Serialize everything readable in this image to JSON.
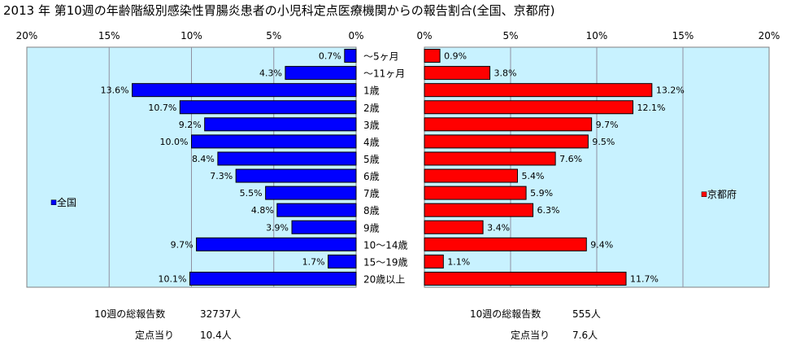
{
  "title": "2013 年 第10週の年齢階級別感染性胃腸炎患者の小児科定点医療機関からの報告割合(全国、京都府)",
  "colors": {
    "national_bar": "#0000ff",
    "kyoto_bar": "#ff0000",
    "plot_bg_left": "#c8f2ff",
    "plot_bg_right": "#c8f2ff",
    "gridline": "#9090a0"
  },
  "chart_data": [
    {
      "type": "bar",
      "orientation": "horizontal",
      "direction": "right-to-left",
      "legend": "全国",
      "legend_position": "left",
      "categories": [
        "～5ヶ月",
        "～11ヶ月",
        "1歳",
        "2歳",
        "3歳",
        "4歳",
        "5歳",
        "6歳",
        "7歳",
        "8歳",
        "9歳",
        "10～14歳",
        "15～19歳",
        "20歳以上"
      ],
      "values": [
        0.7,
        4.3,
        13.6,
        10.7,
        9.2,
        10.0,
        8.4,
        7.3,
        5.5,
        4.8,
        3.9,
        9.7,
        1.7,
        10.1
      ],
      "value_labels": [
        "0.7%",
        "4.3%",
        "13.6%",
        "10.7%",
        "9.2%",
        "10.0%",
        "8.4%",
        "7.3%",
        "5.5%",
        "4.8%",
        "3.9%",
        "9.7%",
        "1.7%",
        "10.1%"
      ],
      "xlim": [
        0,
        20
      ],
      "ticks": [
        "20%",
        "15%",
        "10%",
        "5%",
        "0%"
      ],
      "grid": true
    },
    {
      "type": "bar",
      "orientation": "horizontal",
      "direction": "left-to-right",
      "legend": "京都府",
      "legend_position": "right",
      "categories": [
        "～5ヶ月",
        "～11ヶ月",
        "1歳",
        "2歳",
        "3歳",
        "4歳",
        "5歳",
        "6歳",
        "7歳",
        "8歳",
        "9歳",
        "10～14歳",
        "15～19歳",
        "20歳以上"
      ],
      "values": [
        0.9,
        3.8,
        13.2,
        12.1,
        9.7,
        9.5,
        7.6,
        5.4,
        5.9,
        6.3,
        3.4,
        9.4,
        1.1,
        11.7
      ],
      "value_labels": [
        "0.9%",
        "3.8%",
        "13.2%",
        "12.1%",
        "9.7%",
        "9.5%",
        "7.6%",
        "5.4%",
        "5.9%",
        "6.3%",
        "3.4%",
        "9.4%",
        "1.1%",
        "11.7%"
      ],
      "xlim": [
        0,
        20
      ],
      "ticks": [
        "0%",
        "5%",
        "10%",
        "15%",
        "20%"
      ],
      "grid": true
    }
  ],
  "stats": {
    "national": {
      "total_label": "10週の総報告数",
      "total_value": "32737人",
      "per_point_label": "定点当り",
      "per_point_value": "10.4人"
    },
    "kyoto": {
      "total_label": "10週の総報告数",
      "total_value": "555人",
      "per_point_label": "定点当り",
      "per_point_value": "7.6人"
    }
  }
}
